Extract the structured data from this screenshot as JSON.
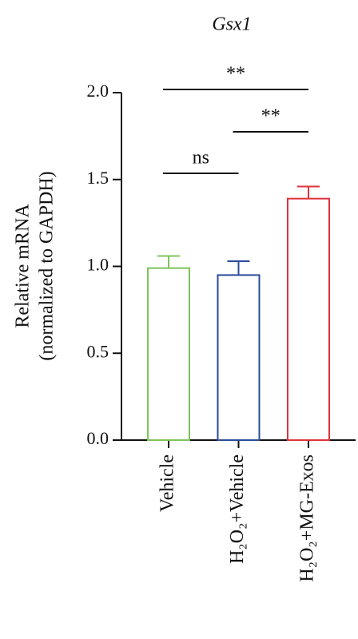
{
  "chart_data": {
    "type": "bar",
    "title": "Gsx1",
    "y_label": [
      "Relative mRNA",
      "(normalized to GAPDH)"
    ],
    "categories": [
      "Vehicle",
      "H₂O₂+Vehicle",
      "H₂O₂+MG-Exos"
    ],
    "values": [
      0.99,
      0.95,
      1.39
    ],
    "errors": [
      0.07,
      0.08,
      0.07
    ],
    "colors": [
      "#7dc35a",
      "#2a4b9b",
      "#e0323c"
    ],
    "ylim": [
      0,
      2.0
    ],
    "yticks": [
      {
        "value": 0,
        "label": "0.0"
      },
      0.5,
      {
        "value": 1,
        "label": "1.0"
      },
      1.5,
      {
        "value": 2,
        "label": "2.0"
      }
    ],
    "comparisons": [
      {
        "label": "**",
        "groups": [
          0,
          2
        ]
      },
      {
        "label": "**",
        "groups": [
          1,
          2
        ]
      },
      {
        "label": "ns",
        "groups": [
          0,
          1
        ]
      }
    ]
  }
}
